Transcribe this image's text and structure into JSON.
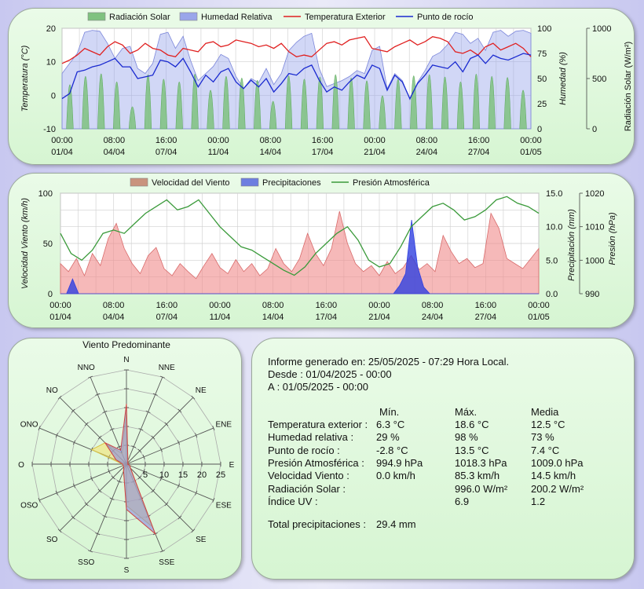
{
  "colors": {
    "radiation": "#7fc27f",
    "humidity": "#9aa6ea",
    "temperature": "#e02020",
    "dewpoint": "#1a2ad0",
    "wind": "#f08a8a",
    "rain": "#3040e0",
    "pressure": "#3a9a3a"
  },
  "chart_data": [
    {
      "id": "temperature-chart",
      "type": "line",
      "legend": [
        "Radiación Solar",
        "Humedad Relativa",
        "Temperatura Exterior",
        "Punto de rocío"
      ],
      "x_ticks_time": [
        "00:00",
        "08:00",
        "16:00",
        "00:00",
        "08:00",
        "16:00",
        "00:00",
        "08:00",
        "16:00",
        "00:00"
      ],
      "x_ticks_date": [
        "01/04",
        "04/04",
        "07/04",
        "11/04",
        "14/04",
        "17/04",
        "21/04",
        "24/04",
        "27/04",
        "01/05"
      ],
      "y_left_label": "Temperatura (°C)",
      "y_left_ticks": [
        "-10",
        "0",
        "10",
        "20"
      ],
      "y_left_range": [
        -10,
        20
      ],
      "y_mid_label": "Humedad (%)",
      "y_mid_ticks": [
        "0",
        "25",
        "50",
        "75",
        "100"
      ],
      "y_mid_range": [
        0,
        100
      ],
      "y_right_label": "Radiación Solar (W/m²)",
      "y_right_ticks": [
        "0",
        "500",
        "1000"
      ],
      "y_right_range": [
        0,
        1000
      ],
      "series": [
        {
          "name": "Temperatura Exterior",
          "values": [
            9.5,
            10.5,
            12,
            14,
            13,
            12,
            14.5,
            16,
            15,
            12.5,
            13.5,
            15.5,
            14,
            13.5,
            12,
            11.5,
            14,
            13.5,
            13,
            15.5,
            16,
            14.5,
            15,
            16.5,
            16,
            15.5,
            14.5,
            15,
            14,
            15.5,
            13,
            11.5,
            12,
            11.5,
            13.5,
            15.5,
            16,
            15,
            16.5,
            17,
            17.5,
            14,
            13.5,
            13,
            14.5,
            15.5,
            16.5,
            15,
            16,
            17.5,
            17,
            16,
            13,
            12.5,
            13.5,
            12,
            14.5,
            15.5,
            13.5,
            14.5,
            15.5,
            14,
            11.5
          ]
        },
        {
          "name": "Punto de rocío",
          "values": [
            -1,
            0.5,
            7,
            7.5,
            8.5,
            9,
            10,
            11,
            8.5,
            8.5,
            5,
            5.5,
            6,
            10.5,
            10,
            8.5,
            11,
            7,
            2.5,
            6,
            4,
            7,
            8,
            4,
            2,
            4.5,
            2.5,
            5,
            1,
            3.5,
            6.5,
            6,
            8,
            9,
            4.5,
            1,
            2.5,
            1.5,
            4,
            6,
            5,
            9,
            8,
            1.5,
            6,
            4,
            -1,
            3.5,
            6,
            9,
            8.5,
            8,
            10,
            7,
            11,
            12,
            9.5,
            12,
            11,
            10.5,
            11.5,
            12.5,
            12
          ]
        },
        {
          "name": "Humedad Relativa",
          "values": [
            55,
            65,
            75,
            96,
            98,
            97,
            85,
            70,
            80,
            82,
            60,
            55,
            65,
            94,
            96,
            80,
            92,
            68,
            48,
            55,
            62,
            74,
            70,
            52,
            40,
            50,
            46,
            60,
            44,
            55,
            78,
            86,
            92,
            95,
            60,
            42,
            45,
            48,
            52,
            58,
            55,
            78,
            82,
            40,
            55,
            48,
            29,
            46,
            58,
            72,
            76,
            84,
            96,
            94,
            85,
            90,
            78,
            96,
            98,
            92,
            97,
            98,
            95
          ]
        },
        {
          "name": "Radiación Solar",
          "values": [
            800,
            950,
            996,
            850,
            400,
            980,
            900,
            850,
            990,
            700,
            950,
            920,
            880,
            500,
            960,
            900,
            940,
            980,
            920,
            870,
            600,
            900,
            960,
            980,
            940,
            850,
            990,
            950,
            930,
            700
          ]
        }
      ]
    },
    {
      "id": "wind-chart",
      "type": "area",
      "legend": [
        "Velocidad del Viento",
        "Precipitaciones",
        "Presión Atmosférica"
      ],
      "x_ticks_time": [
        "00:00",
        "08:00",
        "16:00",
        "00:00",
        "08:00",
        "16:00",
        "00:00",
        "08:00",
        "16:00",
        "00:00"
      ],
      "x_ticks_date": [
        "01/04",
        "04/04",
        "07/04",
        "11/04",
        "14/04",
        "17/04",
        "21/04",
        "24/04",
        "27/04",
        "01/05"
      ],
      "y_left_label": "Velocidad Viento (km/h)",
      "y_left_ticks": [
        "0",
        "50",
        "100"
      ],
      "y_left_range": [
        0,
        100
      ],
      "y_mid_label": "Precipitación (mm)",
      "y_mid_ticks": [
        "0.0",
        "5.0",
        "10.0",
        "15.0"
      ],
      "y_mid_range": [
        0,
        15
      ],
      "y_right_label": "Presión (hPa)",
      "y_right_ticks": [
        "990",
        "1000",
        "1010",
        "1020"
      ],
      "y_right_range": [
        990,
        1020
      ],
      "series": [
        {
          "name": "Velocidad del Viento",
          "values": [
            30,
            22,
            35,
            18,
            40,
            28,
            55,
            70,
            45,
            30,
            20,
            38,
            46,
            25,
            18,
            30,
            22,
            15,
            28,
            40,
            26,
            20,
            34,
            22,
            30,
            18,
            25,
            45,
            30,
            22,
            35,
            60,
            40,
            28,
            45,
            82,
            50,
            30,
            22,
            28,
            18,
            32,
            20,
            26,
            38,
            24,
            30,
            22,
            58,
            42,
            30,
            35,
            26,
            30,
            80,
            65,
            35,
            30,
            25,
            35,
            45
          ]
        },
        {
          "name": "Presión Atmosférica",
          "values": [
            1008,
            1002,
            1000,
            1003,
            1008,
            1009,
            1008,
            1011,
            1014,
            1016,
            1018,
            1015,
            1016,
            1018,
            1014,
            1010,
            1007,
            1004,
            1003,
            1001,
            999,
            997,
            995.5,
            998,
            1002,
            1005,
            1008,
            1010,
            1006,
            1000,
            998,
            999,
            1004,
            1010,
            1013,
            1016,
            1017,
            1015,
            1012,
            1013,
            1015,
            1018,
            1019,
            1017,
            1016,
            1014
          ]
        },
        {
          "name": "Precipitaciones",
          "values": [
            0,
            0,
            2.2,
            0,
            0,
            0,
            0,
            0,
            0,
            0,
            0,
            0,
            0,
            0,
            0,
            0,
            0,
            0,
            0,
            0,
            0,
            0,
            0,
            0,
            0,
            0,
            0,
            0,
            0,
            0,
            0,
            0,
            0,
            0,
            0,
            0,
            0,
            0,
            0,
            0,
            0,
            0,
            0,
            0,
            0,
            0,
            0,
            0,
            0,
            0,
            0,
            0,
            0,
            0,
            0,
            0,
            1.2,
            3.0,
            11.0,
            4.0,
            1.0,
            0,
            0,
            0,
            0,
            0,
            0,
            0,
            0,
            0,
            0,
            0,
            0,
            0,
            0,
            0,
            0,
            0,
            0,
            0
          ]
        }
      ]
    },
    {
      "id": "wind-rose",
      "type": "radar",
      "title": "Viento Predominante",
      "directions": [
        "N",
        "NNE",
        "NE",
        "ENE",
        "E",
        "ESE",
        "SE",
        "SSE",
        "S",
        "SSO",
        "SO",
        "OSO",
        "O",
        "ONO",
        "NO",
        "NNO"
      ],
      "radial_ticks": [
        "5",
        "10",
        "15",
        "20",
        "25"
      ],
      "radial_max": 25,
      "series": [
        {
          "name": "frequency",
          "values": [
            16,
            1,
            0.5,
            0.5,
            0.3,
            1,
            1.5,
            20,
            12,
            2,
            1,
            1,
            1,
            3,
            8,
            4
          ]
        },
        {
          "name": "speed",
          "values": [
            14,
            1,
            0.5,
            0.5,
            0.3,
            1,
            1.5,
            18,
            11,
            2,
            1,
            1,
            1,
            10,
            8,
            3
          ]
        }
      ]
    }
  ],
  "report": {
    "generated": "Informe generado en: 25/05/2025 - 07:29 Hora Local.",
    "from": "Desde : 01/04/2025 - 00:00",
    "to": "A : 01/05/2025 - 00:00",
    "headers": [
      "Mín.",
      "Máx.",
      "Media"
    ],
    "rows": [
      {
        "label": "Temperatura exterior :",
        "min": "6.3 °C",
        "max": "18.6 °C",
        "avg": "12.5 °C"
      },
      {
        "label": "Humedad relativa :",
        "min": "29 %",
        "max": "98 %",
        "avg": "73 %"
      },
      {
        "label": "Punto de rocío :",
        "min": "-2.8 °C",
        "max": "13.5 °C",
        "avg": "7.4 °C"
      },
      {
        "label": "Presión Atmosférica :",
        "min": "994.9 hPa",
        "max": "1018.3 hPa",
        "avg": "1009.0 hPa"
      },
      {
        "label": "Velocidad Viento :",
        "min": "0.0 km/h",
        "max": "85.3 km/h",
        "avg": "14.5 km/h"
      },
      {
        "label": "Radiación Solar :",
        "min": "",
        "max": "996.0 W/m²",
        "avg": "200.2 W/m²"
      },
      {
        "label": "Índice UV :",
        "min": "",
        "max": "6.9",
        "avg": "1.2"
      }
    ],
    "precip_label": "Total precipitaciones :",
    "precip_value": "29.4 mm"
  }
}
